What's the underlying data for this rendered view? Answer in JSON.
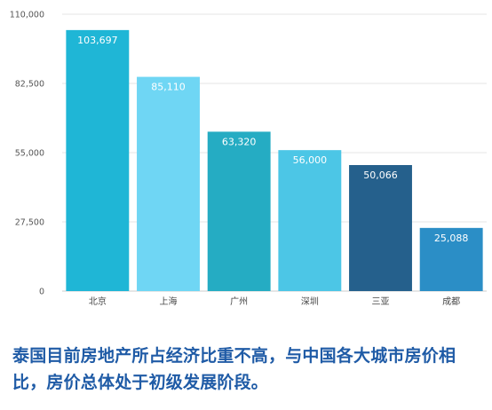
{
  "chart_data": {
    "type": "bar",
    "categories": [
      "北京",
      "上海",
      "广州",
      "深圳",
      "三亚",
      "成都"
    ],
    "values": [
      103697,
      85110,
      63320,
      56000,
      50066,
      25088
    ],
    "value_labels": [
      "103,697",
      "85,110",
      "63,320",
      "56,000",
      "50,066",
      "25,088"
    ],
    "colors": [
      "#1fb6d6",
      "#6fd6f4",
      "#25acc3",
      "#4cc6e6",
      "#25608c",
      "#2b8ec6"
    ],
    "yticks": [
      "0",
      "27,500",
      "55,000",
      "82,500",
      "110,000"
    ],
    "ytick_values": [
      0,
      27500,
      55000,
      82500,
      110000
    ],
    "ylim": [
      0,
      110000
    ],
    "grid": true,
    "title": "",
    "xlabel": "",
    "ylabel": ""
  },
  "caption": "泰国目前房地产所占经济比重不高，与中国各大城市房价相比，房价总体处于初级发展阶段。"
}
